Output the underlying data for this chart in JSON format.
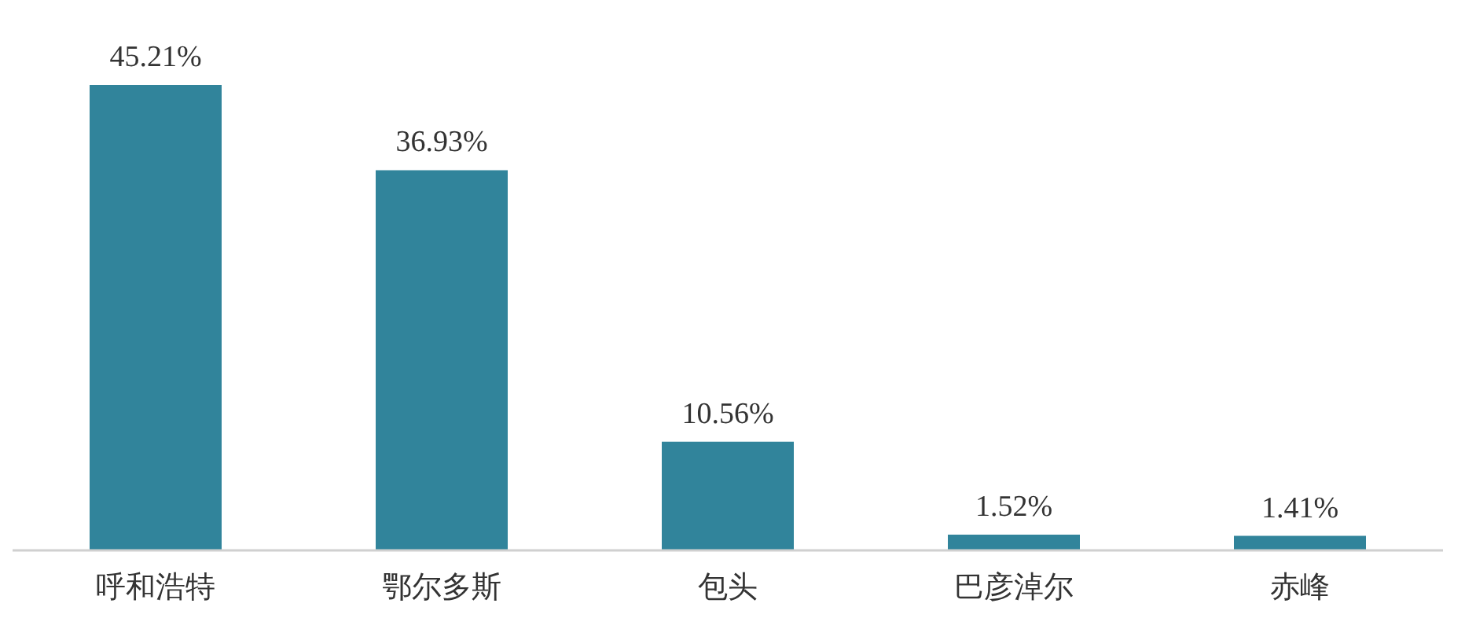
{
  "chart_data": {
    "type": "bar",
    "categories": [
      "呼和浩特",
      "鄂尔多斯",
      "包头",
      "巴彦淖尔",
      "赤峰"
    ],
    "values": [
      45.21,
      36.93,
      10.56,
      1.52,
      1.41
    ],
    "value_labels": [
      "45.21%",
      "36.93%",
      "10.56%",
      "1.52%",
      "1.41%"
    ],
    "color": "#31849b",
    "grid": false,
    "legend": false
  }
}
